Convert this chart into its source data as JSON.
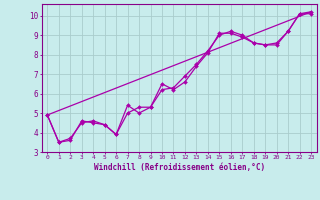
{
  "xlabel": "Windchill (Refroidissement éolien,°C)",
  "xlim": [
    -0.5,
    23.5
  ],
  "ylim": [
    3,
    10.6
  ],
  "yticks": [
    3,
    4,
    5,
    6,
    7,
    8,
    9,
    10
  ],
  "xticks": [
    0,
    1,
    2,
    3,
    4,
    5,
    6,
    7,
    8,
    9,
    10,
    11,
    12,
    13,
    14,
    15,
    16,
    17,
    18,
    19,
    20,
    21,
    22,
    23
  ],
  "bg_color": "#c8ecec",
  "grid_color": "#aacccc",
  "line_color": "#aa00aa",
  "line1_x": [
    0,
    1,
    2,
    3,
    4,
    5,
    6,
    7,
    8,
    9,
    10,
    11,
    12,
    13,
    14,
    15,
    16,
    17,
    18,
    19,
    20,
    21,
    22,
    23
  ],
  "line1_y": [
    4.9,
    3.5,
    3.6,
    4.6,
    4.5,
    4.4,
    3.9,
    5.4,
    5.0,
    5.3,
    6.5,
    6.2,
    6.6,
    7.4,
    8.1,
    9.1,
    9.1,
    8.9,
    8.6,
    8.5,
    8.5,
    9.2,
    10.1,
    10.1
  ],
  "line2_x": [
    0,
    1,
    2,
    3,
    4,
    5,
    6,
    7,
    8,
    9,
    10,
    11,
    12,
    13,
    14,
    15,
    16,
    17,
    18,
    19,
    20,
    21,
    22,
    23
  ],
  "line2_y": [
    4.9,
    3.5,
    3.7,
    4.5,
    4.6,
    4.4,
    3.9,
    5.0,
    5.3,
    5.3,
    6.2,
    6.3,
    6.9,
    7.5,
    8.2,
    9.0,
    9.2,
    9.0,
    8.6,
    8.5,
    8.6,
    9.2,
    10.1,
    10.2
  ],
  "line3_x": [
    0,
    23
  ],
  "line3_y": [
    4.9,
    10.2
  ]
}
